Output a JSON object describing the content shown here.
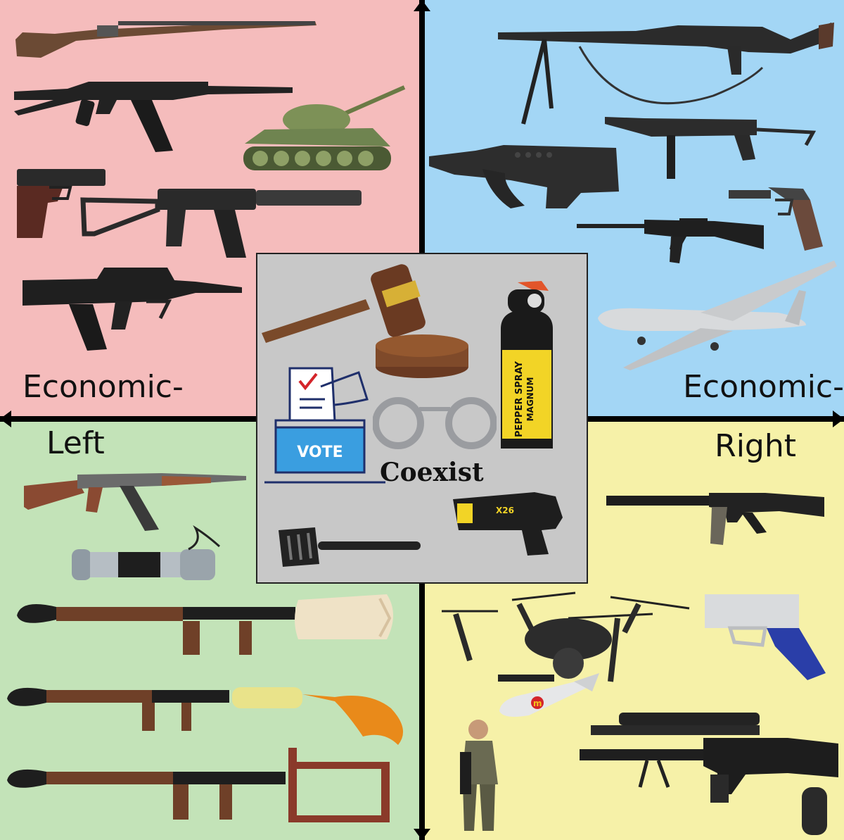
{
  "colors": {
    "auth_left": "#f5bcbc",
    "auth_right": "#a3d6f5",
    "lib_left": "#c3e3b8",
    "lib_right": "#f6f1a8",
    "center": "#c8c8c8",
    "axis": "#000000"
  },
  "axis_labels": {
    "econ_left": "Economic-",
    "left": "Left",
    "econ_right": "Economic-",
    "right": "Right"
  },
  "center": {
    "vote_label": "VOTE",
    "coexist_label": "Coexist",
    "spray_line1": "PEPPER SPRAY",
    "spray_line2": "MAGNUM",
    "taser_label": "X26"
  },
  "icons": {
    "auth_left": [
      "bolt-action-rifle-icon",
      "folding-stock-rifle-icon",
      "tank-icon",
      "pistol-icon",
      "suppressed-rifle-icon",
      "bullpup-rifle-icon"
    ],
    "auth_right": [
      "machine-gun-icon",
      "submachine-gun-icon",
      "bullpup-assault-rifle-icon",
      "luger-pistol-icon",
      "m16-rifle-icon",
      "reaper-drone-icon"
    ],
    "lib_left": [
      "ak47-icon",
      "pipe-bomb-icon",
      "rpg-ice-cream-icon",
      "rpg-molotov-icon",
      "rpg-guillotine-icon"
    ],
    "lib_right": [
      "ar15-icon",
      "printed-pistol-icon",
      "quadcopter-drone-icon",
      "missile-icon",
      "child-soldier-icon",
      "tactical-rifle-icon"
    ],
    "center": [
      "gavel-icon",
      "pepper-spray-icon",
      "ballot-box-icon",
      "handcuffs-icon",
      "spatula-icon",
      "taser-icon"
    ]
  }
}
